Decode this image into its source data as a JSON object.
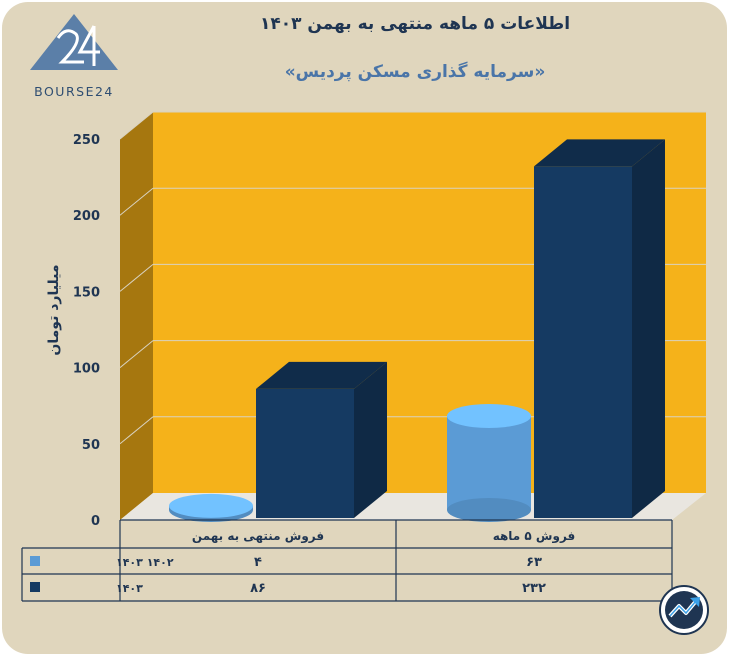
{
  "header": {
    "title": "اطلاعات ۵ ماهه منتهی به بهمن ۱۴۰۳",
    "subtitle": "«سرمایه گذاری مسکن پردیس»"
  },
  "logo": {
    "text": "BOURSE24",
    "icon": "bourse24-logo-icon"
  },
  "badge": {
    "icon": "trend-arrow-badge-icon"
  },
  "chart_data": {
    "type": "bar",
    "ylabel": "میلیارد تومان",
    "ylim": [
      0,
      250
    ],
    "yticks": [
      0,
      50,
      100,
      150,
      200,
      250
    ],
    "ytick_labels": [
      "0",
      "50",
      "100",
      "150",
      "200",
      "250"
    ],
    "categories": [
      "فروش ۵ ماهه",
      "فروش منتهی به بهمن"
    ],
    "series": [
      {
        "name": "۱۴۰۲ ۱۴۰۳",
        "shape": "cylinder",
        "color": "#5b9bd5",
        "values": [
          63,
          4
        ],
        "labels": [
          "۶۳",
          "۴"
        ]
      },
      {
        "name": "۱۴۰۳",
        "shape": "box",
        "color": "#153a62",
        "values": [
          232,
          86
        ],
        "labels": [
          "۲۳۲",
          "۸۶"
        ]
      }
    ],
    "grid": true,
    "legend": "table-left",
    "wall_color": "#f5b21a"
  }
}
